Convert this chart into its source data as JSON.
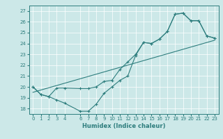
{
  "title": "",
  "xlabel": "Humidex (Indice chaleur)",
  "bg_color": "#cce8e8",
  "line_color": "#2d7d7d",
  "xlim": [
    -0.5,
    23.5
  ],
  "ylim": [
    17.5,
    27.5
  ],
  "xticks": [
    0,
    1,
    2,
    3,
    4,
    6,
    7,
    8,
    9,
    10,
    11,
    12,
    13,
    14,
    15,
    16,
    17,
    18,
    19,
    20,
    21,
    22,
    23
  ],
  "yticks": [
    18,
    19,
    20,
    21,
    22,
    23,
    24,
    25,
    26,
    27
  ],
  "line1_x": [
    0,
    1,
    2,
    3,
    4,
    6,
    7,
    8,
    9,
    10,
    11,
    12,
    13,
    14,
    15,
    16,
    17,
    18,
    19,
    20,
    21,
    22,
    23
  ],
  "line1_y": [
    20.0,
    19.3,
    19.1,
    18.8,
    18.5,
    17.75,
    17.75,
    18.4,
    19.4,
    20.0,
    20.6,
    21.0,
    22.9,
    24.1,
    24.0,
    24.4,
    25.1,
    26.7,
    26.8,
    26.1,
    26.1,
    24.7,
    24.5
  ],
  "line2_x": [
    0,
    23
  ],
  "line2_y": [
    19.5,
    24.3
  ],
  "line3_x": [
    0,
    1,
    2,
    3,
    4,
    6,
    7,
    8,
    9,
    10,
    11,
    12,
    13,
    14,
    15,
    16,
    17,
    18,
    19,
    20,
    21,
    22,
    23
  ],
  "line3_y": [
    20.0,
    19.3,
    19.1,
    19.9,
    19.9,
    19.85,
    19.85,
    20.0,
    20.5,
    20.6,
    21.6,
    22.3,
    23.0,
    24.1,
    24.0,
    24.4,
    25.1,
    26.7,
    26.8,
    26.1,
    26.1,
    24.7,
    24.5
  ]
}
